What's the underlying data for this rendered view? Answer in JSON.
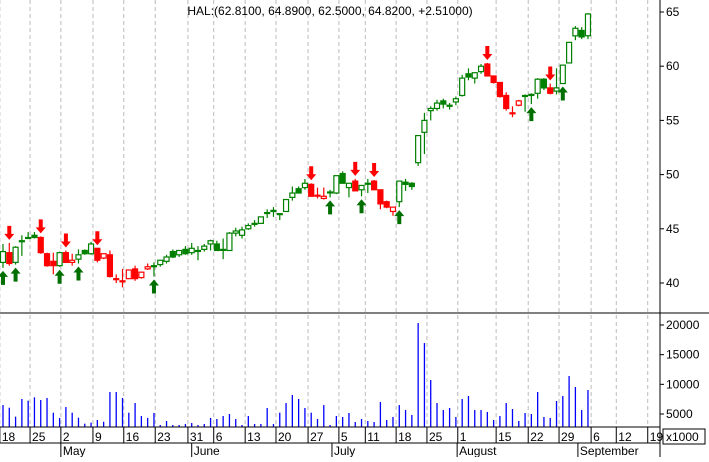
{
  "chart_data": {
    "type": "candlestick",
    "symbol": "HAL",
    "title": "HAL:(62.8100, 64.8900, 62.5000, 64.8200, +2.51000)",
    "price_axis": {
      "ticks": [
        40,
        45,
        50,
        55,
        60,
        65
      ],
      "labels": [
        "40",
        "45",
        "50",
        "55",
        "60",
        "65"
      ],
      "range": [
        37.5,
        66
      ]
    },
    "volume_axis": {
      "ticks": [
        5000,
        10000,
        15000,
        20000
      ],
      "labels": [
        "5000",
        "10000",
        "15000",
        "20000"
      ],
      "multiplier_label": "x1000"
    },
    "colors": {
      "up": "#008000",
      "down": "#ff0000",
      "volume": "#0000ff"
    },
    "candles_ohlc_style": [
      [
        41.9,
        43.6,
        41.4,
        42.9,
        "gh"
      ],
      [
        42.8,
        43.7,
        41.6,
        41.8,
        "r"
      ],
      [
        41.9,
        43.4,
        41.7,
        43.3,
        "gh"
      ],
      [
        43.9,
        44.4,
        42.5,
        43.9,
        "g"
      ],
      [
        44.2,
        44.7,
        44.1,
        44.2,
        "g"
      ],
      [
        44.4,
        44.7,
        44.1,
        44.2,
        "g"
      ],
      [
        44.2,
        44.3,
        42.7,
        42.8,
        "r"
      ],
      [
        42.7,
        42.8,
        41.5,
        41.6,
        "r"
      ],
      [
        42.0,
        42.8,
        40.8,
        41.6,
        "r"
      ],
      [
        41.6,
        42.9,
        41.5,
        42.8,
        "gh"
      ],
      [
        42.8,
        43.0,
        41.9,
        41.9,
        "r"
      ],
      [
        41.9,
        42.7,
        41.6,
        42.1,
        "rh"
      ],
      [
        42.2,
        43.1,
        41.8,
        42.6,
        "gh"
      ],
      [
        43.0,
        43.1,
        42.6,
        42.7,
        "g"
      ],
      [
        42.7,
        43.8,
        42.6,
        43.6,
        "gh"
      ],
      [
        43.2,
        43.2,
        41.9,
        42.1,
        "r"
      ],
      [
        42.3,
        42.7,
        42.2,
        42.7,
        "rh"
      ],
      [
        42.6,
        43.0,
        40.5,
        40.6,
        "r"
      ],
      [
        40.4,
        40.8,
        40.0,
        40.4,
        "r"
      ],
      [
        40.2,
        41.3,
        39.6,
        40.2,
        "r"
      ],
      [
        40.4,
        41.2,
        40.4,
        41.2,
        "rh"
      ],
      [
        41.3,
        41.6,
        40.2,
        40.4,
        "r"
      ],
      [
        40.5,
        41.0,
        40.4,
        41.0,
        "rh"
      ],
      [
        41.3,
        41.8,
        41.2,
        41.5,
        "rh"
      ],
      [
        41.6,
        41.9,
        40.6,
        41.5,
        "g"
      ],
      [
        41.7,
        42.1,
        41.5,
        42.1,
        "gh"
      ],
      [
        42.0,
        42.6,
        41.8,
        42.4,
        "gh"
      ],
      [
        42.9,
        43.1,
        42.3,
        42.4,
        "g"
      ],
      [
        42.6,
        43.0,
        42.4,
        43.0,
        "gh"
      ],
      [
        43.1,
        43.4,
        42.6,
        42.7,
        "g"
      ],
      [
        42.8,
        43.7,
        42.6,
        43.2,
        "gh"
      ],
      [
        43.0,
        43.4,
        42.1,
        43.0,
        "g"
      ],
      [
        43.1,
        43.6,
        42.9,
        43.4,
        "gh"
      ],
      [
        43.6,
        44.0,
        43.0,
        43.9,
        "gh"
      ],
      [
        43.6,
        43.9,
        43.0,
        43.0,
        "g"
      ],
      [
        43.1,
        44.1,
        42.2,
        43.1,
        "g"
      ],
      [
        43.0,
        44.7,
        43.0,
        44.6,
        "gh"
      ],
      [
        44.6,
        45.1,
        44.3,
        44.8,
        "gh"
      ],
      [
        44.4,
        45.2,
        44.1,
        44.9,
        "gh"
      ],
      [
        45.0,
        45.5,
        44.9,
        45.3,
        "gh"
      ],
      [
        45.5,
        45.8,
        45.2,
        45.5,
        "g"
      ],
      [
        45.5,
        46.1,
        45.5,
        46.1,
        "gh"
      ],
      [
        46.5,
        46.8,
        46.0,
        46.5,
        "g"
      ],
      [
        46.7,
        47.0,
        46.1,
        46.6,
        "g"
      ],
      [
        46.4,
        46.4,
        45.8,
        46.4,
        "g"
      ],
      [
        46.6,
        47.7,
        46.6,
        47.7,
        "gh"
      ],
      [
        47.9,
        48.9,
        47.6,
        48.3,
        "gh"
      ],
      [
        48.7,
        48.9,
        48.3,
        48.3,
        "g"
      ],
      [
        48.8,
        49.6,
        48.6,
        49.2,
        "gh"
      ],
      [
        49.1,
        49.2,
        48.0,
        48.0,
        "r"
      ],
      [
        48.1,
        48.8,
        47.8,
        48.1,
        "r"
      ],
      [
        47.8,
        48.8,
        47.7,
        48.0,
        "rh"
      ],
      [
        48.4,
        48.6,
        47.9,
        48.4,
        "g"
      ],
      [
        48.3,
        49.9,
        48.2,
        49.9,
        "gh"
      ],
      [
        50.1,
        50.3,
        49.2,
        49.2,
        "g"
      ],
      [
        48.8,
        49.2,
        47.9,
        49.2,
        "gh"
      ],
      [
        49.4,
        49.6,
        48.5,
        48.5,
        "r"
      ],
      [
        48.6,
        49.0,
        48.0,
        49.0,
        "gh"
      ],
      [
        49.2,
        49.6,
        48.3,
        49.2,
        "g"
      ],
      [
        49.4,
        49.5,
        48.6,
        48.6,
        "r"
      ],
      [
        48.6,
        48.6,
        46.8,
        47.3,
        "r"
      ],
      [
        47.5,
        47.6,
        46.9,
        47.0,
        "r"
      ],
      [
        46.6,
        47.0,
        46.2,
        47.0,
        "rh"
      ],
      [
        47.5,
        49.4,
        47.0,
        49.4,
        "gh"
      ],
      [
        49.3,
        49.6,
        48.5,
        49.1,
        "g"
      ],
      [
        49.2,
        49.3,
        48.6,
        48.9,
        "g"
      ],
      [
        51.1,
        53.6,
        50.8,
        53.6,
        "gh"
      ],
      [
        53.9,
        55.7,
        51.9,
        55.0,
        "gh"
      ],
      [
        55.9,
        56.3,
        55.0,
        56.1,
        "gh"
      ],
      [
        56.1,
        56.9,
        55.9,
        56.6,
        "gh"
      ],
      [
        56.8,
        57.0,
        56.1,
        56.5,
        "g"
      ],
      [
        56.4,
        56.6,
        56.0,
        56.3,
        "g"
      ],
      [
        56.7,
        57.2,
        56.4,
        57.0,
        "gh"
      ],
      [
        57.3,
        59.2,
        57.2,
        58.9,
        "gh"
      ],
      [
        59.3,
        59.8,
        58.7,
        59.0,
        "g"
      ],
      [
        58.9,
        59.4,
        58.4,
        59.4,
        "gh"
      ],
      [
        59.5,
        60.2,
        59.3,
        60.0,
        "gh"
      ],
      [
        60.2,
        60.3,
        59.1,
        59.1,
        "r"
      ],
      [
        59.1,
        59.1,
        58.4,
        58.5,
        "r"
      ],
      [
        58.5,
        58.5,
        57.1,
        57.2,
        "r"
      ],
      [
        57.3,
        57.6,
        55.9,
        56.1,
        "r"
      ],
      [
        55.7,
        56.3,
        55.3,
        55.7,
        "r"
      ],
      [
        56.4,
        56.9,
        56.3,
        56.8,
        "rh"
      ],
      [
        57.3,
        57.4,
        55.8,
        57.3,
        "g"
      ],
      [
        57.4,
        57.5,
        56.5,
        57.3,
        "g"
      ],
      [
        57.5,
        58.9,
        57.0,
        58.8,
        "gh"
      ],
      [
        58.8,
        58.9,
        57.8,
        58.0,
        "g"
      ],
      [
        58.0,
        58.4,
        57.4,
        57.5,
        "r"
      ],
      [
        57.7,
        59.8,
        57.4,
        58.0,
        "gh"
      ],
      [
        58.4,
        60.1,
        58.4,
        60.1,
        "gh"
      ],
      [
        60.3,
        62.2,
        60.3,
        62.2,
        "gh"
      ],
      [
        62.8,
        63.7,
        62.4,
        63.5,
        "gh"
      ],
      [
        63.3,
        63.6,
        62.5,
        62.7,
        "g"
      ],
      [
        62.81,
        64.89,
        62.5,
        64.82,
        "gh"
      ]
    ],
    "volume": [
      6500,
      6060,
      4550,
      7530,
      7250,
      7810,
      7360,
      7700,
      5220,
      4330,
      6180,
      5220,
      4380,
      3370,
      3540,
      3990,
      3700,
      8710,
      8710,
      7700,
      5220,
      6850,
      4660,
      4330,
      5170,
      3150,
      3820,
      2900,
      2900,
      3320,
      3480,
      3150,
      3320,
      4330,
      4160,
      4660,
      5000,
      4160,
      2900,
      4660,
      3320,
      3320,
      6010,
      3320,
      5220,
      6850,
      8200,
      7530,
      6010,
      5220,
      4160,
      6500,
      2980,
      4660,
      4500,
      5170,
      3650,
      4160,
      3820,
      3650,
      7020,
      3990,
      4500,
      6500,
      5670,
      4830,
      20330,
      16960,
      10730,
      6850,
      5670,
      6010,
      4500,
      7530,
      8030,
      5670,
      5670,
      5340,
      3990,
      4660,
      6850,
      5840,
      3820,
      5170,
      5000,
      8710,
      4500,
      4330,
      7190,
      8030,
      11400,
      9550,
      5670,
      9040
    ],
    "buy_signals": [
      0,
      2,
      9,
      12,
      24,
      52,
      57,
      63,
      84,
      89
    ],
    "sell_signals": [
      1,
      6,
      10,
      15,
      49,
      56,
      59,
      77,
      87
    ],
    "x_ticks": [
      {
        "label": "18",
        "index": -0.5
      },
      {
        "label": "25",
        "index": 4.3
      },
      {
        "label": "2",
        "index": 9.2
      },
      {
        "label": "9",
        "index": 14.3
      },
      {
        "label": "16",
        "index": 19.2
      },
      {
        "label": "23",
        "index": 24.2
      },
      {
        "label": "31",
        "index": 29.4
      },
      {
        "label": "6",
        "index": 33.5
      },
      {
        "label": "13",
        "index": 38.5
      },
      {
        "label": "20",
        "index": 43.4
      },
      {
        "label": "27",
        "index": 48.5
      },
      {
        "label": "5",
        "index": 53.4
      },
      {
        "label": "11",
        "index": 57.6
      },
      {
        "label": "18",
        "index": 62.5
      },
      {
        "label": "25",
        "index": 67.4
      },
      {
        "label": "1",
        "index": 72.3
      },
      {
        "label": "15",
        "index": 78.4
      },
      {
        "label": "22",
        "index": 83.5
      },
      {
        "label": "29",
        "index": 88.4
      },
      {
        "label": "6",
        "index": 93.5
      },
      {
        "label": "12",
        "index": 97.5
      },
      {
        "label": "19",
        "index": 102.5
      }
    ],
    "months": [
      {
        "label": "May",
        "index": 9.2
      },
      {
        "label": "June",
        "index": 30
      },
      {
        "label": "July",
        "index": 52.3
      },
      {
        "label": "August",
        "index": 72.2
      },
      {
        "label": "September",
        "index": 91.4
      }
    ]
  }
}
